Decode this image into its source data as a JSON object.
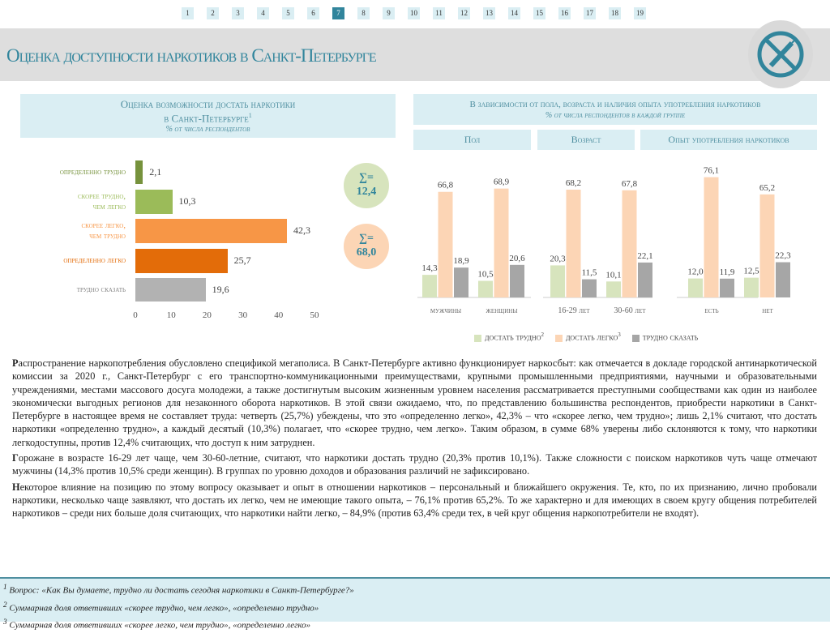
{
  "nav": {
    "pages": [
      "1",
      "2",
      "3",
      "4",
      "5",
      "6",
      "7",
      "8",
      "9",
      "10",
      "11",
      "12",
      "13",
      "14",
      "15",
      "16",
      "17",
      "18",
      "19"
    ],
    "active": "7"
  },
  "header": {
    "title": "Оценка доступности наркотиков в Санкт-Петербурге",
    "logo_icon": "no-drugs-syringe-icon"
  },
  "left_panel": {
    "title_line1": "Оценка возможности достать наркотики",
    "title_line2": "в Санкт-Петербурге",
    "title_sup": "1",
    "subtitle": "% от числа респондентов",
    "sum_hard_label": "∑=",
    "sum_hard_value": "12,4",
    "sum_easy_label": "∑=",
    "sum_easy_value": "68,0"
  },
  "chart_data": [
    {
      "type": "bar",
      "orientation": "horizontal",
      "title": "Оценка возможности достать наркотики в Санкт-Петербурге",
      "subtitle": "% от числа респондентов",
      "categories": [
        "определенно трудно",
        "скорее трудно, чем легко",
        "скорее легко, чем трудно",
        "определенно легко",
        "трудно сказать"
      ],
      "values": [
        2.1,
        10.3,
        42.3,
        25.7,
        19.6
      ],
      "value_labels": [
        "2,1",
        "10,3",
        "42,3",
        "25,7",
        "19,6"
      ],
      "colors": [
        "#76923c",
        "#9bbb59",
        "#f79646",
        "#e36c09",
        "#b2b2b2"
      ],
      "xlim": [
        0,
        50
      ],
      "xticks": [
        "0",
        "10",
        "20",
        "30",
        "40",
        "50"
      ]
    },
    {
      "type": "bar",
      "title": "В зависимости от пола, возраста и наличия опыта употребления наркотиков",
      "subtitle": "% от числа респондентов в каждой группе",
      "groups": [
        {
          "name": "Пол",
          "categories": [
            "мужчины",
            "женщины"
          ]
        },
        {
          "name": "Возраст",
          "categories": [
            "16-29 лет",
            "30-60 лет"
          ]
        },
        {
          "name": "Опыт употребления наркотиков",
          "categories": [
            "есть",
            "нет"
          ]
        }
      ],
      "categories": [
        "мужчины",
        "женщины",
        "16-29 лет",
        "30-60 лет",
        "есть",
        "нет"
      ],
      "series": [
        {
          "name": "достать трудно",
          "sup": "2",
          "color": "#d7e4bd",
          "values": [
            14.3,
            10.5,
            20.3,
            10.1,
            12.0,
            12.5
          ],
          "labels": [
            "14,3",
            "10,5",
            "20,3",
            "10,1",
            "12,0",
            "12,5"
          ]
        },
        {
          "name": "достать легко",
          "sup": "3",
          "color": "#fcd5b5",
          "values": [
            66.8,
            68.9,
            68.2,
            67.8,
            76.1,
            65.2
          ],
          "labels": [
            "66,8",
            "68,9",
            "68,2",
            "67,8",
            "76,1",
            "65,2"
          ]
        },
        {
          "name": "трудно сказать",
          "sup": "",
          "color": "#a6a6a6",
          "values": [
            18.9,
            20.6,
            11.5,
            22.1,
            11.9,
            22.3
          ],
          "labels": [
            "18,9",
            "20,6",
            "11,5",
            "22,1",
            "11,9",
            "22,3"
          ]
        }
      ]
    }
  ],
  "body": [
    {
      "lead": "Р",
      "text": "аспространение наркопотребления обусловлено спецификой мегаполиса. В Санкт-Петербурге активно функционирует наркосбыт: как отмечается в докладе городской антинаркотической комиссии за 2020 г., Санкт-Петербург с его транспортно-коммуникационными преимуществами, крупными промышленными предприятиями, научными и образовательными учреждениями, местами массового досуга молодежи, а также достигнутым высоким жизненным уровнем населения рассматривается преступными сообществами как один из наиболее экономически выгодных регионов для незаконного оборота наркотиков. В этой связи ожидаемо, что, по представлению большинства респондентов, приобрести наркотики в Санкт-Петербурге в настоящее время не составляет труда: четверть (25,7%) убеждены, что это «определенно легко», 42,3% – что «скорее легко, чем трудно»; лишь 2,1% считают, что достать наркотики «определенно трудно», а каждый десятый (10,3%) полагает, что «скорее трудно, чем легко». Таким образом, в сумме 68% уверены либо склоняются к тому, что наркотики легкодоступны, против 12,4% считающих, что доступ к ним затруднен."
    },
    {
      "lead": "Г",
      "text": "орожане в возрасте 16-29 лет чаще, чем 30-60-летние, считают, что наркотики достать трудно (20,3% против 10,1%). Также сложности с поиском наркотиков чуть чаще отмечают мужчины (14,3% против 10,5% среди женщин). В группах по уровню доходов и образования различий не зафиксировано."
    },
    {
      "lead": "Н",
      "text": "екоторое влияние на позицию по этому вопросу оказывает и опыт в отношении наркотиков – персональный и ближайшего окружения. Те, кто, по их признанию, лично пробовали наркотики, несколько чаще заявляют, что достать их легко, чем не имеющие такого опыта, – 76,1% против 65,2%. То же характерно и для имеющих в своем кругу общения потребителей наркотиков – среди них больше доля считающих, что наркотики найти легко, – 84,9% (против 63,4% среди тех, в чей круг общения наркопотребители не входят)."
    }
  ],
  "footnotes": [
    {
      "num": "1",
      "text": "Вопрос: «Как Вы думаете, трудно ли достать сегодня наркотики в Санкт-Петербурге?»"
    },
    {
      "num": "2",
      "text": "Суммарная доля ответивших «скорее трудно, чем легко», «определенно трудно»"
    },
    {
      "num": "3",
      "text": "Суммарная доля ответивших «скорее легко, чем трудно», «определенно легко»"
    }
  ]
}
